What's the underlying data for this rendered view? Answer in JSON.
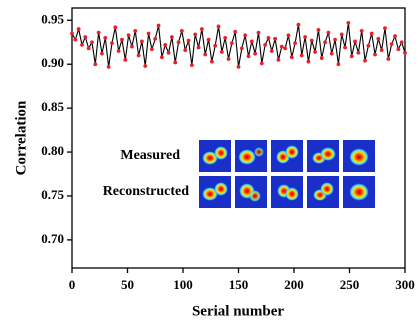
{
  "chart_data": {
    "type": "line",
    "x_label": "Serial number",
    "y_label": "Correlation",
    "xlim": [
      0,
      300
    ],
    "ylim": [
      0.668,
      0.964
    ],
    "xticks": [
      0,
      50,
      100,
      150,
      200,
      250,
      300
    ],
    "yticks": [
      {
        "value": 0.7,
        "label": "0.70"
      },
      0.75,
      {
        "value": 0.8,
        "label": "0.80"
      },
      0.85,
      {
        "value": 0.9,
        "label": "0.90"
      },
      0.95
    ],
    "line_color": "#000000",
    "marker_color": "#e8202a",
    "inset_labels": [
      "Measured",
      "Reconstructed"
    ],
    "x": [
      0,
      3,
      6,
      9,
      12,
      15,
      18,
      21,
      24,
      27,
      30,
      33,
      36,
      39,
      42,
      45,
      48,
      51,
      54,
      57,
      60,
      63,
      66,
      69,
      72,
      75,
      78,
      81,
      84,
      87,
      90,
      93,
      96,
      99,
      102,
      105,
      108,
      111,
      114,
      117,
      120,
      123,
      126,
      129,
      132,
      135,
      138,
      141,
      144,
      147,
      150,
      153,
      156,
      159,
      162,
      165,
      168,
      171,
      174,
      177,
      180,
      183,
      186,
      189,
      192,
      195,
      198,
      201,
      204,
      207,
      210,
      213,
      216,
      219,
      222,
      225,
      228,
      231,
      234,
      237,
      240,
      243,
      246,
      249,
      252,
      255,
      258,
      261,
      264,
      267,
      270,
      273,
      276,
      279,
      282,
      285,
      288,
      291,
      294,
      297,
      300
    ],
    "values": [
      0.935,
      0.928,
      0.94,
      0.922,
      0.931,
      0.918,
      0.925,
      0.9,
      0.936,
      0.912,
      0.93,
      0.897,
      0.924,
      0.942,
      0.915,
      0.928,
      0.905,
      0.933,
      0.92,
      0.938,
      0.91,
      0.926,
      0.898,
      0.935,
      0.917,
      0.929,
      0.944,
      0.908,
      0.922,
      0.913,
      0.931,
      0.902,
      0.925,
      0.938,
      0.916,
      0.927,
      0.899,
      0.934,
      0.919,
      0.94,
      0.911,
      0.928,
      0.903,
      0.921,
      0.943,
      0.914,
      0.93,
      0.906,
      0.924,
      0.937,
      0.897,
      0.918,
      0.933,
      0.909,
      0.926,
      0.912,
      0.936,
      0.901,
      0.922,
      0.93,
      0.915,
      0.929,
      0.905,
      0.92,
      0.918,
      0.933,
      0.908,
      0.924,
      0.945,
      0.91,
      0.931,
      0.903,
      0.927,
      0.914,
      0.939,
      0.907,
      0.925,
      0.936,
      0.912,
      0.928,
      0.9,
      0.934,
      0.919,
      0.947,
      0.909,
      0.926,
      0.913,
      0.938,
      0.904,
      0.921,
      0.935,
      0.911,
      0.929,
      0.916,
      0.941,
      0.906,
      0.923,
      0.932,
      0.917,
      0.925,
      0.913
    ]
  }
}
